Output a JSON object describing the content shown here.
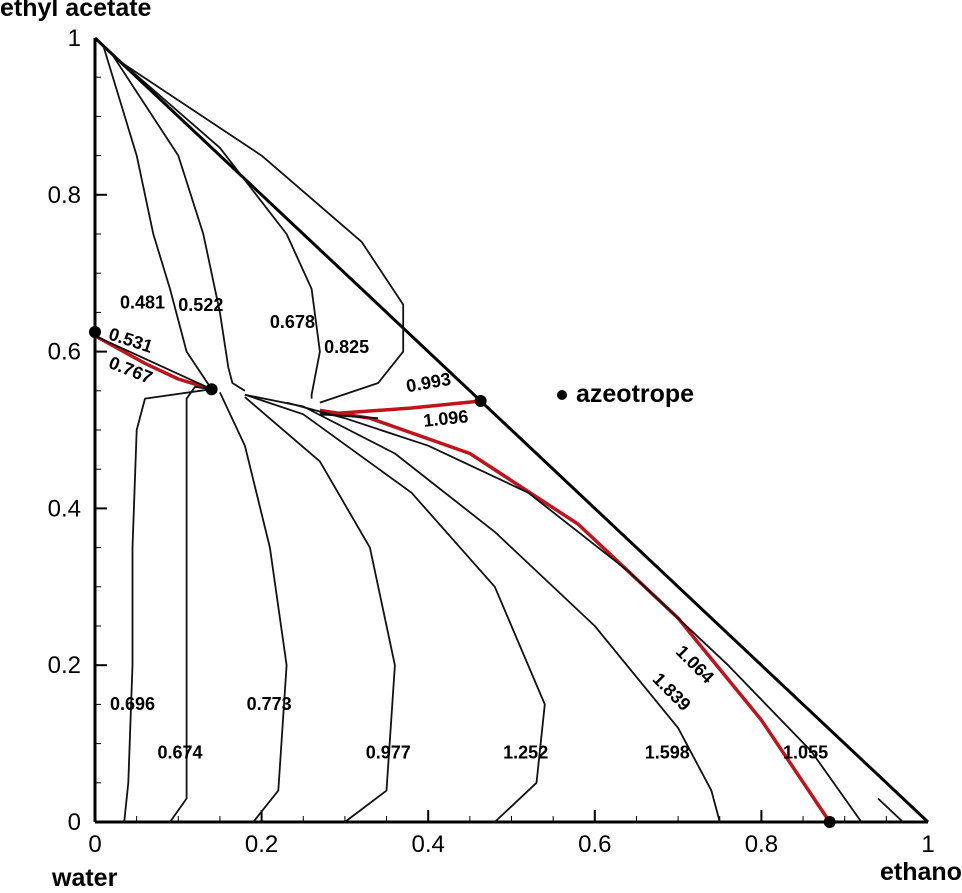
{
  "corner_labels": {
    "top": "ethyl acetate",
    "bottom_left": "water",
    "bottom_right": "ethanol"
  },
  "legend": {
    "label": "azeotrope"
  },
  "colors": {
    "curve": "#111111",
    "highlight": "#c0141c",
    "axis": "#000000"
  },
  "chart_data": {
    "type": "diagram",
    "subtype": "ternary residue curve map",
    "x_label": "ethanol",
    "y_label": "ethyl acetate",
    "origin_label": "water",
    "x_ticks": [
      "0",
      "0.2",
      "0.4",
      "0.6",
      "0.8",
      "1"
    ],
    "y_ticks": [
      "0",
      "0.2",
      "0.4",
      "0.6",
      "0.8",
      "1"
    ],
    "xlim": [
      0,
      1
    ],
    "ylim": [
      0,
      1
    ],
    "azeotropes": [
      {
        "x": 0.0,
        "y": 0.625
      },
      {
        "x": 0.14,
        "y": 0.552
      },
      {
        "x": 0.463,
        "y": 0.537
      },
      {
        "x": 0.882,
        "y": 0.0
      }
    ],
    "curves": [
      {
        "label": "0.481",
        "highlight": false,
        "points": [
          [
            0.01,
            0.99
          ],
          [
            0.05,
            0.85
          ],
          [
            0.07,
            0.75
          ],
          [
            0.09,
            0.68
          ],
          [
            0.11,
            0.6
          ],
          [
            0.14,
            0.552
          ]
        ]
      },
      {
        "label": "0.522",
        "highlight": false,
        "points": [
          [
            0.02,
            0.98
          ],
          [
            0.1,
            0.85
          ],
          [
            0.13,
            0.75
          ],
          [
            0.15,
            0.65
          ],
          [
            0.16,
            0.58
          ],
          [
            0.165,
            0.56
          ],
          [
            0.18,
            0.55
          ]
        ]
      },
      {
        "label": "0.678",
        "highlight": false,
        "points": [
          [
            0.02,
            0.98
          ],
          [
            0.15,
            0.86
          ],
          [
            0.23,
            0.75
          ],
          [
            0.26,
            0.68
          ],
          [
            0.27,
            0.6
          ],
          [
            0.26,
            0.545
          ],
          [
            0.26,
            0.54
          ]
        ]
      },
      {
        "label": "0.825",
        "highlight": false,
        "points": [
          [
            0.03,
            0.97
          ],
          [
            0.2,
            0.85
          ],
          [
            0.32,
            0.74
          ],
          [
            0.37,
            0.66
          ],
          [
            0.37,
            0.6
          ],
          [
            0.34,
            0.56
          ],
          [
            0.27,
            0.535
          ]
        ]
      },
      {
        "label": "0.531",
        "highlight": true,
        "points": [
          [
            0.0,
            0.62
          ],
          [
            0.06,
            0.585
          ],
          [
            0.1,
            0.565
          ],
          [
            0.14,
            0.552
          ]
        ]
      },
      {
        "label": "0.993",
        "highlight": true,
        "points": [
          [
            0.463,
            0.537
          ],
          [
            0.38,
            0.528
          ],
          [
            0.3,
            0.522
          ],
          [
            0.27,
            0.52
          ]
        ]
      },
      {
        "label": "1.839",
        "highlight": true,
        "points": [
          [
            0.882,
            0.0
          ],
          [
            0.8,
            0.13
          ],
          [
            0.7,
            0.26
          ],
          [
            0.58,
            0.38
          ],
          [
            0.45,
            0.47
          ],
          [
            0.33,
            0.515
          ],
          [
            0.27,
            0.525
          ]
        ]
      },
      {
        "label": "0.696",
        "highlight": false,
        "points": [
          [
            0.035,
            0.0
          ],
          [
            0.04,
            0.05
          ],
          [
            0.045,
            0.2
          ],
          [
            0.045,
            0.35
          ],
          [
            0.05,
            0.5
          ],
          [
            0.06,
            0.54
          ],
          [
            0.14,
            0.552
          ]
        ]
      },
      {
        "label": "0.674",
        "highlight": false,
        "points": [
          [
            0.09,
            0.0
          ],
          [
            0.11,
            0.03
          ],
          [
            0.11,
            0.25
          ],
          [
            0.11,
            0.45
          ],
          [
            0.11,
            0.54
          ],
          [
            0.12,
            0.555
          ],
          [
            0.14,
            0.552
          ]
        ]
      },
      {
        "label": "0.773",
        "highlight": false,
        "points": [
          [
            0.19,
            0.0
          ],
          [
            0.22,
            0.04
          ],
          [
            0.23,
            0.2
          ],
          [
            0.21,
            0.35
          ],
          [
            0.18,
            0.48
          ],
          [
            0.15,
            0.548
          ]
        ]
      },
      {
        "label": "0.977",
        "highlight": false,
        "points": [
          [
            0.3,
            0.0
          ],
          [
            0.35,
            0.04
          ],
          [
            0.36,
            0.2
          ],
          [
            0.33,
            0.35
          ],
          [
            0.27,
            0.46
          ],
          [
            0.18,
            0.542
          ]
        ]
      },
      {
        "label": "1.252",
        "highlight": false,
        "points": [
          [
            0.48,
            0.0
          ],
          [
            0.53,
            0.05
          ],
          [
            0.54,
            0.15
          ],
          [
            0.48,
            0.3
          ],
          [
            0.38,
            0.42
          ],
          [
            0.25,
            0.52
          ],
          [
            0.18,
            0.545
          ]
        ]
      },
      {
        "label": "1.598",
        "highlight": false,
        "points": [
          [
            0.75,
            0.0
          ],
          [
            0.74,
            0.04
          ],
          [
            0.7,
            0.12
          ],
          [
            0.6,
            0.25
          ],
          [
            0.48,
            0.37
          ],
          [
            0.36,
            0.47
          ],
          [
            0.25,
            0.53
          ],
          [
            0.18,
            0.545
          ]
        ]
      },
      {
        "label": "1.064",
        "highlight": false,
        "points": [
          [
            0.92,
            0.0
          ],
          [
            0.86,
            0.09
          ],
          [
            0.76,
            0.2
          ],
          [
            0.64,
            0.32
          ],
          [
            0.52,
            0.42
          ],
          [
            0.4,
            0.48
          ],
          [
            0.3,
            0.515
          ],
          [
            0.23,
            0.535
          ]
        ]
      },
      {
        "label": "1.096",
        "highlight": false,
        "points": [
          [
            0.27,
            0.52
          ],
          [
            0.34,
            0.515
          ]
        ]
      },
      {
        "label": "0.767",
        "highlight": false,
        "points": [
          [
            0.0,
            0.62
          ],
          [
            0.14,
            0.552
          ]
        ]
      },
      {
        "label": "1.055",
        "highlight": false,
        "points": [
          [
            0.97,
            0.0
          ],
          [
            0.94,
            0.03
          ]
        ]
      }
    ]
  }
}
